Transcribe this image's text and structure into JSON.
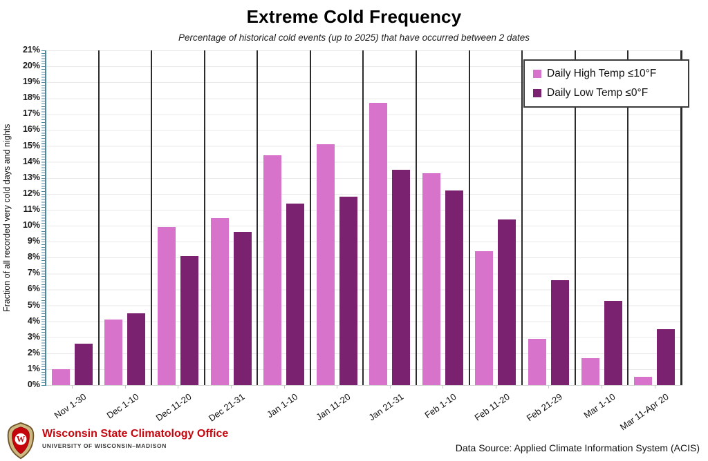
{
  "title": "Extreme Cold Frequency",
  "subtitle": "Percentage of historical cold events (up to 2025) that have occurred between 2 dates",
  "chart_data": {
    "type": "bar",
    "categories": [
      "Nov 1-30",
      "Dec 1-10",
      "Dec 11-20",
      "Dec 21-31",
      "Jan 1-10",
      "Jan 11-20",
      "Jan 21-31",
      "Feb 1-10",
      "Feb 11-20",
      "Feb 21-29",
      "Mar 1-10",
      "Mar 11-Apr 20"
    ],
    "series": [
      {
        "name": "Daily High Temp ≤10°F",
        "color": "#d873cb",
        "values": [
          1.0,
          4.1,
          9.9,
          10.5,
          14.4,
          15.1,
          17.7,
          13.3,
          8.4,
          2.9,
          1.7,
          0.5
        ]
      },
      {
        "name": "Daily Low Temp ≤0°F",
        "color": "#7a2170",
        "values": [
          2.6,
          4.5,
          8.1,
          9.6,
          11.4,
          11.8,
          13.5,
          12.2,
          10.4,
          6.6,
          5.3,
          3.5
        ]
      }
    ],
    "xlabel": "",
    "ylabel": "Fraction of all recorded very cold days and nights",
    "ylim": [
      0,
      21
    ],
    "ytick_step": 1,
    "ytick_format": "percent",
    "grid": "horizontal-gridlines-with-vertical-category-separators",
    "legend_position": "top-right"
  },
  "footer": {
    "org_name": "Wisconsin State Climatology Office",
    "org_subname": "UNIVERSITY OF WISCONSIN–MADISON",
    "data_source": "Data Source: Applied Climate Information System (ACIS)"
  },
  "colors": {
    "bar_high": "#d873cb",
    "bar_low": "#7a2170",
    "y_axis": "#4e86a0",
    "separator": "#2b2b2b",
    "gridline": "#e9e9e9",
    "org_red": "#c5050c"
  }
}
